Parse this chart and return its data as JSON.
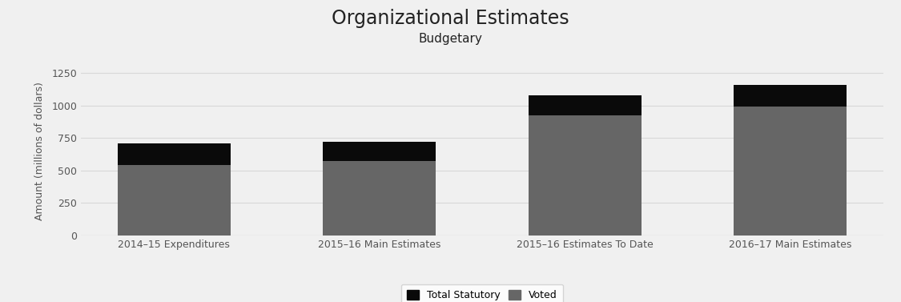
{
  "title": "Organizational Estimates",
  "subtitle": "Budgetary",
  "ylabel": "Amount (millions of dollars)",
  "categories": [
    "2014–15 Expenditures",
    "2015–16 Main Estimates",
    "2015–16 Estimates To Date",
    "2016–17 Main Estimates"
  ],
  "voted": [
    543,
    572,
    922,
    993
  ],
  "statutory": [
    168,
    150,
    158,
    163
  ],
  "voted_color": "#666666",
  "statutory_color": "#0a0a0a",
  "background_color": "#f0f0f0",
  "plot_bg_color": "#f0f0f0",
  "ylim": [
    0,
    1300
  ],
  "yticks": [
    0,
    250,
    500,
    750,
    1000,
    1250
  ],
  "grid_color": "#d8d8d8",
  "legend_labels": [
    "Total Statutory",
    "Voted"
  ],
  "bar_width": 0.55,
  "title_fontsize": 17,
  "subtitle_fontsize": 11,
  "ylabel_fontsize": 9,
  "tick_fontsize": 9,
  "legend_fontsize": 9
}
